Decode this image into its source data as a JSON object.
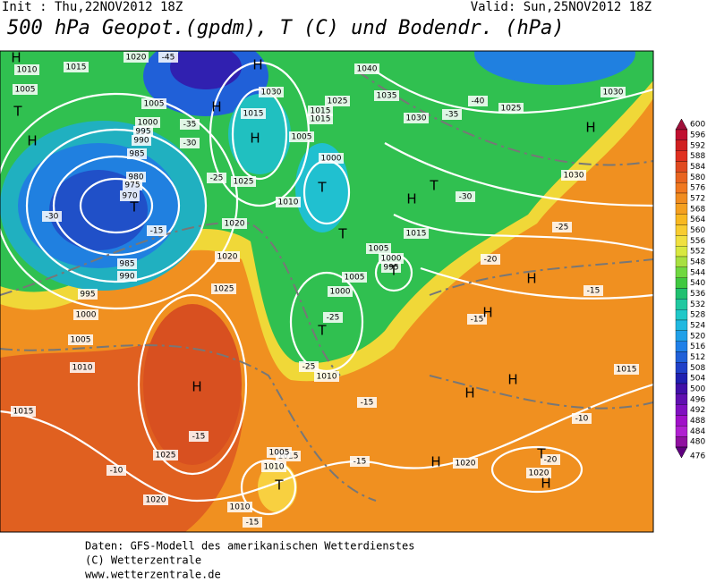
{
  "header": {
    "init": "Init : Thu,22NOV2012 18Z",
    "valid": "Valid: Sun,25NOV2012 18Z",
    "title": "500 hPa Geopot.(gpdm), T (C) und Bodendr. (hPa)"
  },
  "legend": {
    "levels": [
      600,
      596,
      592,
      588,
      584,
      580,
      576,
      572,
      568,
      564,
      560,
      556,
      552,
      548,
      544,
      540,
      536,
      532,
      528,
      524,
      520,
      516,
      512,
      508,
      504,
      500,
      496,
      492,
      488,
      484,
      480,
      476
    ],
    "colors": [
      "#a0103a",
      "#c01030",
      "#d02020",
      "#e03020",
      "#e04a20",
      "#e86420",
      "#f07820",
      "#f08c20",
      "#f4a020",
      "#f8b820",
      "#f8cc30",
      "#f0e040",
      "#d8e840",
      "#a8e040",
      "#70d840",
      "#40c840",
      "#20c070",
      "#20c8a0",
      "#20c8c8",
      "#20b8e0",
      "#20a0e8",
      "#2080e8",
      "#2060d8",
      "#2040c8",
      "#2020b0",
      "#4010a8",
      "#6010b0",
      "#8010c0",
      "#a010c8",
      "#b020d0",
      "#9010a0",
      "#600080"
    ]
  },
  "map_labels": [
    "1010",
    "1015",
    "1005",
    "1020",
    "-45",
    "1015",
    "1030",
    "1040",
    "1035",
    "1030",
    "1025",
    "1015",
    "1030",
    "1005",
    "-35",
    "-30",
    "1000",
    "995",
    "990",
    "985",
    "980",
    "975",
    "970",
    "-30",
    "-15",
    "1025",
    "1020",
    "1010",
    "1000",
    "1005",
    "1015",
    "-25",
    "1020",
    "1025",
    "-30",
    "-40",
    "-35",
    "1025",
    "1015",
    "1005",
    "1000",
    "995",
    "1005",
    "1000",
    "-25",
    "1010",
    "985",
    "990",
    "995",
    "1000",
    "1005",
    "1010",
    "1015",
    "1025",
    "-15",
    "-10",
    "1020",
    "1015",
    "1010",
    "1005",
    "-15",
    "1020",
    "1020",
    "1030",
    "-25",
    "-20",
    "-15",
    "-25",
    "-15",
    "-10",
    "1015",
    "1010",
    "-15",
    "-20",
    "-15",
    "H",
    "T",
    "H",
    "H",
    "T",
    "H",
    "T",
    "T",
    "H",
    "T",
    "T",
    "T",
    "H",
    "H",
    "H",
    "H",
    "H",
    "H",
    "T",
    "T",
    "H",
    "H",
    "H"
  ],
  "footer": [
    "Daten: GFS-Modell des amerikanischen Wetterdienstes",
    "(C) Wetterzentrale",
    "www.wetterzentrale.de"
  ]
}
